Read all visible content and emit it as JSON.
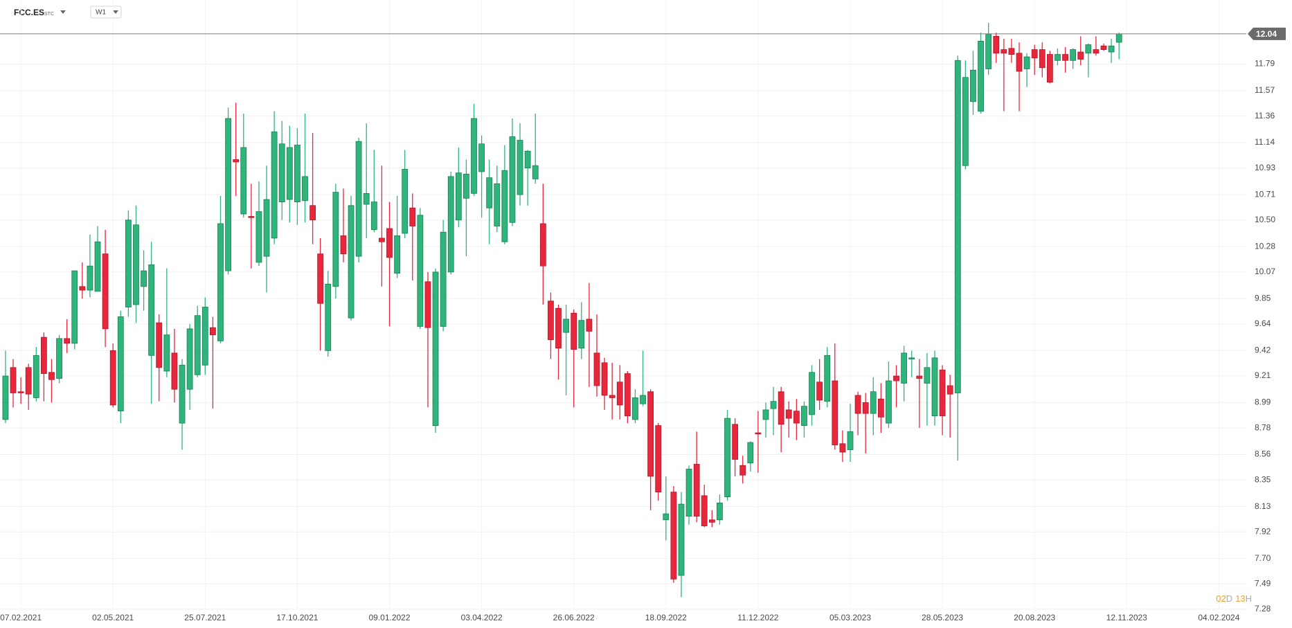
{
  "header": {
    "symbol": "FCC.ES",
    "market": "STC",
    "timeframe": "W1"
  },
  "countdown": {
    "days": "02",
    "day_unit": "D",
    "hours": "13",
    "hour_unit": "H"
  },
  "chart_data": {
    "type": "candlestick",
    "up_color": "#2fb47c",
    "down_color": "#e8273d",
    "grid": true,
    "last_price": 12.04,
    "xlim": [
      "19.01.2021",
      "29.02.2024"
    ],
    "xticks": [
      "07.02.2021",
      "02.05.2021",
      "25.07.2021",
      "17.10.2021",
      "09.01.2022",
      "03.04.2022",
      "26.06.2022",
      "18.09.2022",
      "11.12.2022",
      "05.03.2023",
      "28.05.2023",
      "20.08.2023",
      "12.11.2023",
      "04.02.2024"
    ],
    "ylim": [
      7.28,
      12.32
    ],
    "yticks": [
      7.28,
      7.49,
      {
        "value": 7.7,
        "label": "7.70"
      },
      7.92,
      8.13,
      8.35,
      8.56,
      8.78,
      8.99,
      9.21,
      9.42,
      9.64,
      9.85,
      10.07,
      10.28,
      {
        "value": 10.5,
        "label": "10.50"
      },
      10.71,
      10.93,
      11.14,
      11.36,
      11.57,
      11.79
    ],
    "x": [
      "24.01.2021",
      "31.01.2021",
      "07.02.2021",
      "14.02.2021",
      "21.02.2021",
      "28.02.2021",
      "07.03.2021",
      "14.03.2021",
      "21.03.2021",
      "28.03.2021",
      "04.04.2021",
      "11.04.2021",
      "18.04.2021",
      "25.04.2021",
      "02.05.2021",
      "09.05.2021",
      "16.05.2021",
      "23.05.2021",
      "30.05.2021",
      "06.06.2021",
      "13.06.2021",
      "20.06.2021",
      "27.06.2021",
      "04.07.2021",
      "11.07.2021",
      "18.07.2021",
      "25.07.2021",
      "01.08.2021",
      "08.08.2021",
      "15.08.2021",
      "22.08.2021",
      "29.08.2021",
      "05.09.2021",
      "12.09.2021",
      "19.09.2021",
      "26.09.2021",
      "03.10.2021",
      "10.10.2021",
      "17.10.2021",
      "24.10.2021",
      "31.10.2021",
      "07.11.2021",
      "14.11.2021",
      "21.11.2021",
      "28.11.2021",
      "05.12.2021",
      "12.12.2021",
      "19.12.2021",
      "26.12.2021",
      "02.01.2022",
      "09.01.2022",
      "16.01.2022",
      "23.01.2022",
      "30.01.2022",
      "06.02.2022",
      "13.02.2022",
      "20.02.2022",
      "27.02.2022",
      "06.03.2022",
      "13.03.2022",
      "20.03.2022",
      "27.03.2022",
      "03.04.2022",
      "10.04.2022",
      "17.04.2022",
      "24.04.2022",
      "01.05.2022",
      "08.05.2022",
      "15.05.2022",
      "22.05.2022",
      "29.05.2022",
      "05.06.2022",
      "12.06.2022",
      "19.06.2022",
      "26.06.2022",
      "03.07.2022",
      "10.07.2022",
      "17.07.2022",
      "24.07.2022",
      "31.07.2022",
      "07.08.2022",
      "14.08.2022",
      "21.08.2022",
      "28.08.2022",
      "04.09.2022",
      "11.09.2022",
      "18.09.2022",
      "25.09.2022",
      "02.10.2022",
      "09.10.2022",
      "16.10.2022",
      "23.10.2022",
      "30.10.2022",
      "06.11.2022",
      "13.11.2022",
      "20.11.2022",
      "27.11.2022",
      "04.12.2022",
      "11.12.2022",
      "18.12.2022",
      "25.12.2022",
      "01.01.2023",
      "08.01.2023",
      "15.01.2023",
      "22.01.2023",
      "29.01.2023",
      "05.02.2023",
      "12.02.2023",
      "19.02.2023",
      "26.02.2023",
      "05.03.2023",
      "12.03.2023",
      "19.03.2023",
      "26.03.2023",
      "02.04.2023",
      "09.04.2023",
      "16.04.2023",
      "23.04.2023",
      "30.04.2023",
      "07.05.2023",
      "14.05.2023",
      "21.05.2023",
      "28.05.2023",
      "04.06.2023",
      "11.06.2023",
      "18.06.2023",
      "25.06.2023",
      "02.07.2023",
      "09.07.2023",
      "16.07.2023",
      "23.07.2023",
      "30.07.2023",
      "06.08.2023",
      "13.08.2023",
      "20.08.2023",
      "27.08.2023",
      "03.09.2023",
      "10.09.2023",
      "17.09.2023",
      "24.09.2023",
      "01.10.2023",
      "08.10.2023",
      "15.10.2023",
      "22.10.2023",
      "29.10.2023",
      "05.11.2023"
    ],
    "open": [
      8.85,
      9.28,
      9.08,
      9.28,
      9.03,
      9.53,
      9.24,
      9.19,
      9.52,
      9.48,
      9.95,
      9.92,
      9.91,
      10.22,
      9.42,
      8.92,
      9.78,
      9.8,
      9.95,
      9.38,
      9.65,
      9.25,
      9.4,
      8.82,
      9.1,
      9.22,
      9.3,
      9.61,
      9.5,
      10.08,
      11.0,
      10.55,
      10.53,
      10.15,
      10.2,
      10.35,
      10.65,
      10.67,
      10.65,
      10.66,
      10.62,
      10.22,
      9.42,
      9.95,
      10.37,
      9.69,
      10.2,
      10.63,
      10.42,
      10.35,
      10.43,
      10.06,
      10.39,
      10.6,
      9.62,
      9.99,
      8.8,
      9.62,
      10.07,
      10.5,
      10.68,
      10.72,
      10.9,
      10.6,
      10.45,
      10.32,
      10.48,
      10.71,
      10.93,
      10.84,
      10.47,
      9.83,
      9.77,
      9.57,
      9.73,
      9.44,
      9.68,
      9.4,
      9.32,
      9.05,
      9.16,
      9.23,
      8.85,
      8.98,
      9.08,
      8.8,
      8.02,
      8.25,
      7.56,
      8.05,
      8.48,
      8.22,
      8.02,
      8.02,
      8.21,
      8.81,
      8.47,
      8.49,
      8.74,
      8.85,
      8.94,
      9.08,
      8.93,
      8.92,
      8.8,
      8.89,
      9.16,
      9.0,
      9.17,
      8.65,
      8.6,
      9.05,
      8.99,
      8.9,
      9.02,
      8.82,
      9.21,
      9.15,
      9.35,
      9.21,
      9.15,
      8.88,
      9.26,
      9.13,
      9.07,
      10.95,
      11.48,
      11.4,
      11.75,
      12.02,
      11.91,
      11.92,
      11.88,
      11.75,
      11.91,
      11.91,
      11.87,
      11.82,
      11.87,
      11.82,
      11.89,
      11.88,
      11.91,
      11.94,
      11.89,
      11.97
    ],
    "high": [
      9.42,
      9.35,
      9.2,
      9.31,
      9.45,
      9.57,
      9.35,
      9.55,
      9.68,
      10.08,
      10.15,
      10.38,
      10.45,
      10.42,
      9.48,
      9.75,
      10.58,
      10.62,
      10.25,
      10.32,
      9.72,
      10.1,
      9.6,
      9.35,
      9.64,
      9.79,
      9.86,
      9.7,
      10.7,
      11.43,
      11.47,
      11.38,
      10.8,
      10.82,
      10.95,
      11.4,
      11.32,
      11.28,
      11.26,
      11.38,
      11.22,
      10.35,
      10.08,
      10.8,
      10.76,
      10.7,
      11.18,
      11.3,
      11.08,
      10.95,
      10.65,
      10.7,
      11.08,
      10.72,
      10.6,
      10.07,
      10.1,
      10.5,
      10.9,
      11.1,
      11.0,
      11.46,
      11.2,
      11.0,
      10.95,
      11.12,
      11.34,
      11.3,
      11.08,
      11.38,
      10.8,
      9.9,
      9.8,
      9.8,
      9.76,
      9.82,
      9.98,
      9.72,
      9.36,
      9.32,
      9.3,
      9.25,
      9.1,
      9.42,
      9.1,
      8.82,
      8.38,
      8.3,
      8.25,
      8.47,
      8.75,
      8.31,
      8.1,
      8.23,
      8.93,
      8.86,
      8.55,
      8.67,
      8.92,
      8.99,
      9.12,
      9.12,
      9.0,
      9.02,
      9.0,
      9.3,
      9.35,
      9.45,
      9.48,
      8.76,
      8.98,
      9.08,
      9.07,
      9.2,
      9.15,
      9.33,
      9.3,
      9.46,
      9.42,
      9.35,
      9.4,
      9.42,
      9.3,
      9.22,
      11.86,
      11.82,
      11.9,
      12.05,
      12.13,
      12.05,
      12.0,
      12.0,
      11.97,
      11.88,
      11.95,
      11.97,
      11.9,
      11.92,
      11.93,
      11.92,
      12.02,
      11.96,
      12.02,
      11.96,
      12.0,
      12.05
    ],
    "low": [
      8.82,
      8.95,
      8.98,
      8.93,
      9.0,
      9.0,
      8.99,
      9.15,
      9.4,
      9.43,
      9.85,
      9.86,
      9.91,
      9.45,
      8.95,
      8.82,
      9.7,
      9.65,
      9.75,
      8.98,
      9.0,
      9.2,
      8.99,
      8.6,
      8.93,
      9.2,
      9.22,
      8.94,
      9.48,
      10.05,
      10.7,
      10.52,
      10.1,
      10.12,
      9.9,
      10.3,
      10.5,
      10.48,
      10.46,
      10.48,
      10.3,
      9.42,
      9.37,
      9.85,
      10.15,
      9.67,
      10.15,
      10.35,
      10.4,
      9.95,
      9.62,
      10.02,
      10.35,
      10.0,
      9.6,
      8.95,
      8.74,
      9.58,
      10.05,
      10.44,
      10.2,
      10.7,
      10.52,
      10.3,
      10.4,
      10.3,
      10.45,
      10.62,
      10.62,
      10.8,
      9.8,
      9.35,
      9.18,
      9.05,
      8.95,
      9.35,
      9.12,
      9.04,
      8.93,
      8.85,
      8.85,
      8.82,
      8.82,
      8.96,
      8.1,
      8.18,
      7.85,
      7.5,
      7.38,
      7.98,
      8.0,
      7.96,
      7.96,
      7.98,
      8.18,
      8.38,
      8.32,
      8.42,
      8.41,
      8.7,
      8.72,
      8.58,
      8.7,
      8.68,
      8.7,
      8.8,
      8.93,
      8.95,
      8.6,
      8.5,
      8.5,
      8.72,
      8.57,
      8.72,
      8.74,
      8.78,
      8.95,
      9.0,
      9.2,
      8.78,
      8.8,
      8.8,
      8.72,
      8.7,
      8.51,
      10.92,
      11.37,
      11.38,
      11.7,
      11.8,
      11.4,
      11.8,
      11.4,
      11.6,
      11.7,
      11.68,
      11.63,
      11.78,
      11.72,
      11.75,
      11.78,
      11.68,
      11.86,
      11.9,
      11.8,
      11.83
    ],
    "close": [
      9.21,
      9.07,
      9.07,
      9.06,
      9.38,
      9.23,
      9.18,
      9.52,
      9.48,
      10.08,
      9.92,
      10.12,
      10.32,
      9.6,
      8.97,
      9.7,
      10.5,
      10.46,
      10.08,
      10.13,
      9.28,
      9.55,
      9.1,
      9.3,
      9.6,
      9.71,
      9.78,
      9.55,
      10.47,
      11.34,
      10.98,
      11.1,
      10.52,
      10.57,
      10.67,
      11.23,
      11.13,
      11.1,
      11.12,
      10.86,
      10.5,
      9.81,
      9.97,
      10.73,
      10.22,
      10.62,
      11.15,
      10.72,
      10.65,
      10.32,
      10.19,
      10.37,
      10.92,
      10.45,
      10.54,
      9.61,
      10.07,
      10.4,
      10.86,
      10.89,
      10.88,
      11.34,
      11.13,
      10.85,
      10.8,
      10.91,
      11.19,
      11.16,
      11.07,
      10.95,
      10.12,
      9.51,
      9.44,
      9.68,
      9.43,
      9.67,
      9.58,
      9.13,
      9.05,
      9.03,
      8.97,
      8.88,
      9.03,
      9.05,
      8.38,
      8.25,
      8.07,
      7.53,
      8.15,
      8.44,
      8.05,
      7.97,
      8.0,
      8.16,
      8.86,
      8.52,
      8.39,
      8.66,
      8.73,
      8.93,
      9.0,
      8.81,
      8.86,
      8.82,
      8.96,
      9.24,
      9.01,
      9.38,
      8.64,
      8.58,
      8.75,
      8.9,
      8.9,
      9.08,
      8.87,
      9.17,
      9.17,
      9.4,
      9.36,
      9.19,
      9.28,
      9.36,
      8.88,
      9.06,
      11.82,
      11.68,
      11.74,
      11.98,
      12.04,
      11.88,
      11.88,
      11.87,
      11.73,
      11.85,
      11.84,
      11.76,
      11.64,
      11.87,
      11.82,
      11.91,
      11.83,
      11.95,
      11.88,
      11.91,
      11.94,
      12.04
    ]
  }
}
